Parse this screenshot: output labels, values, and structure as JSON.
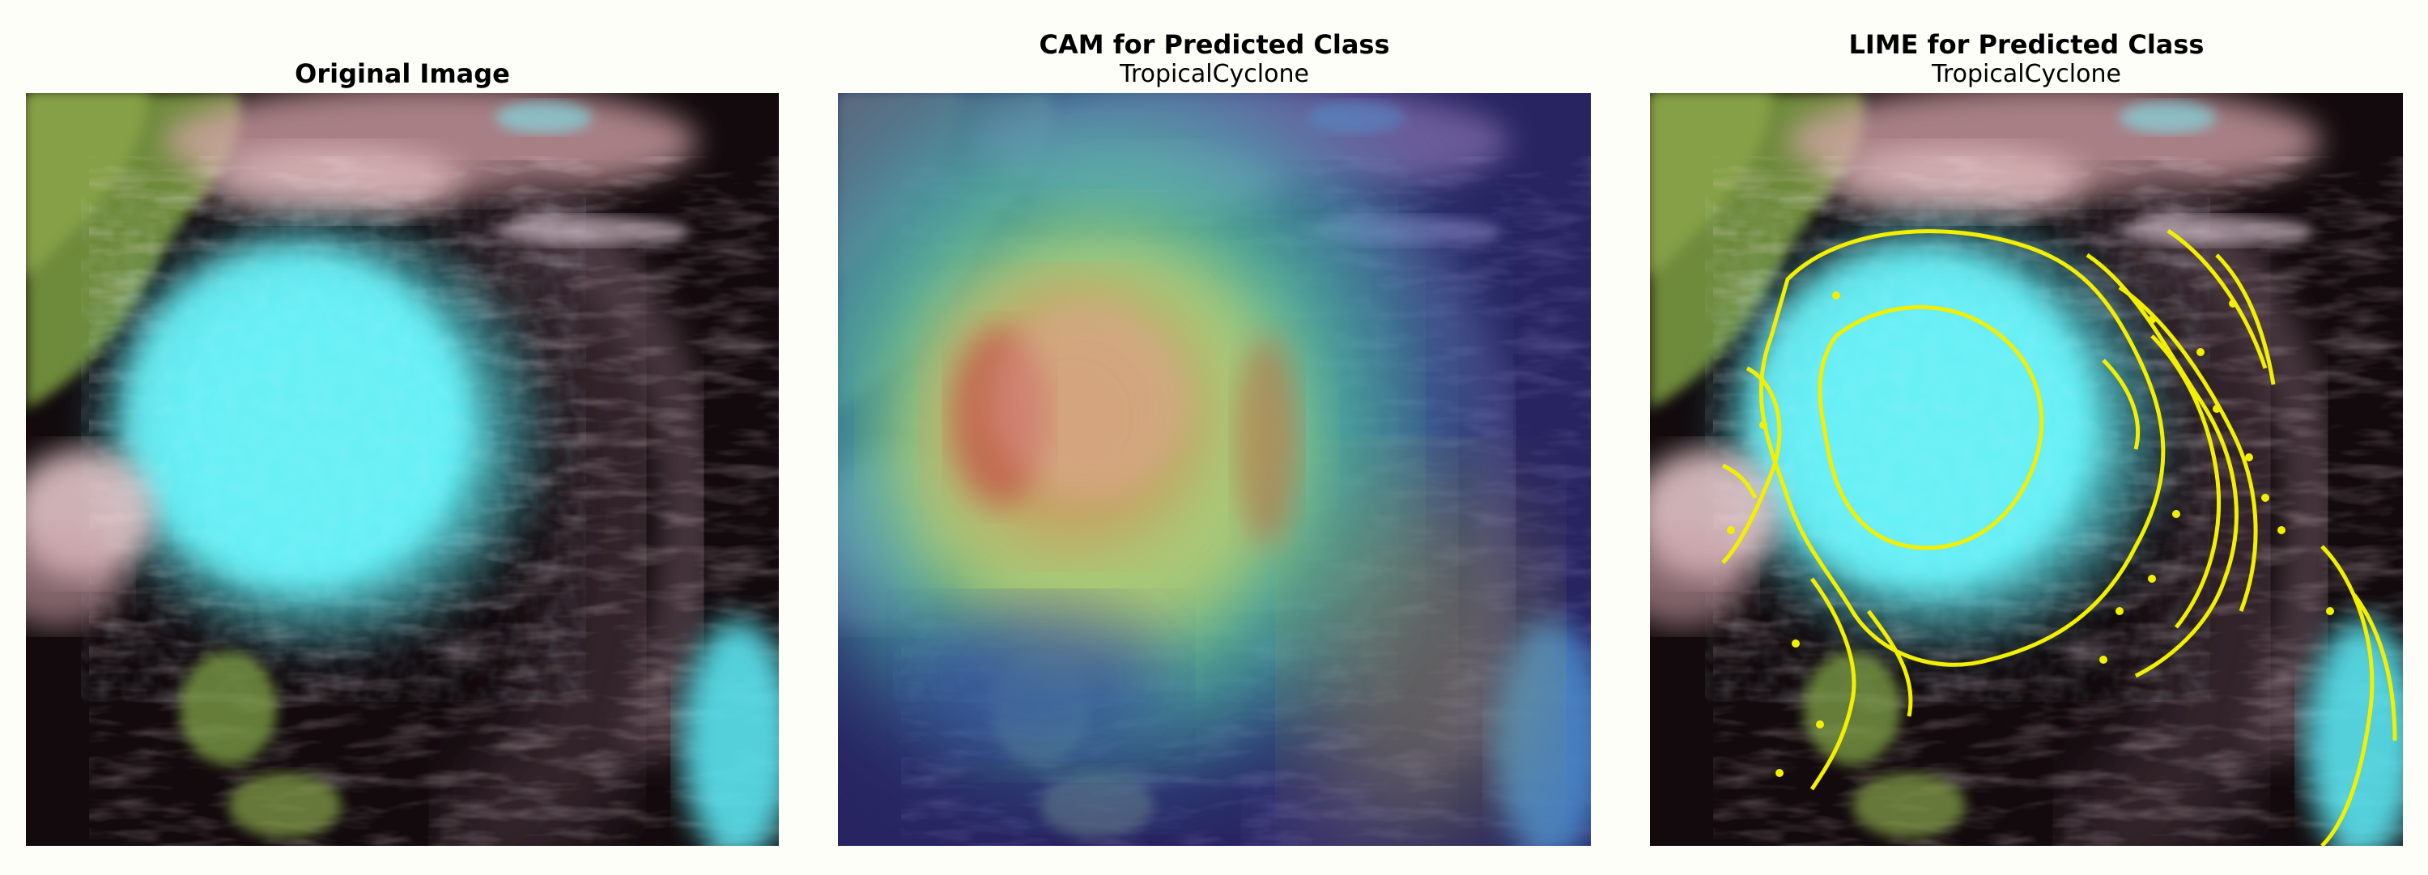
{
  "panels": [
    {
      "title": "Original Image",
      "subtitle": ""
    },
    {
      "title": "CAM for Predicted Class",
      "subtitle": "TropicalCyclone"
    },
    {
      "title": "LIME for Predicted Class",
      "subtitle": "TropicalCyclone"
    }
  ]
}
